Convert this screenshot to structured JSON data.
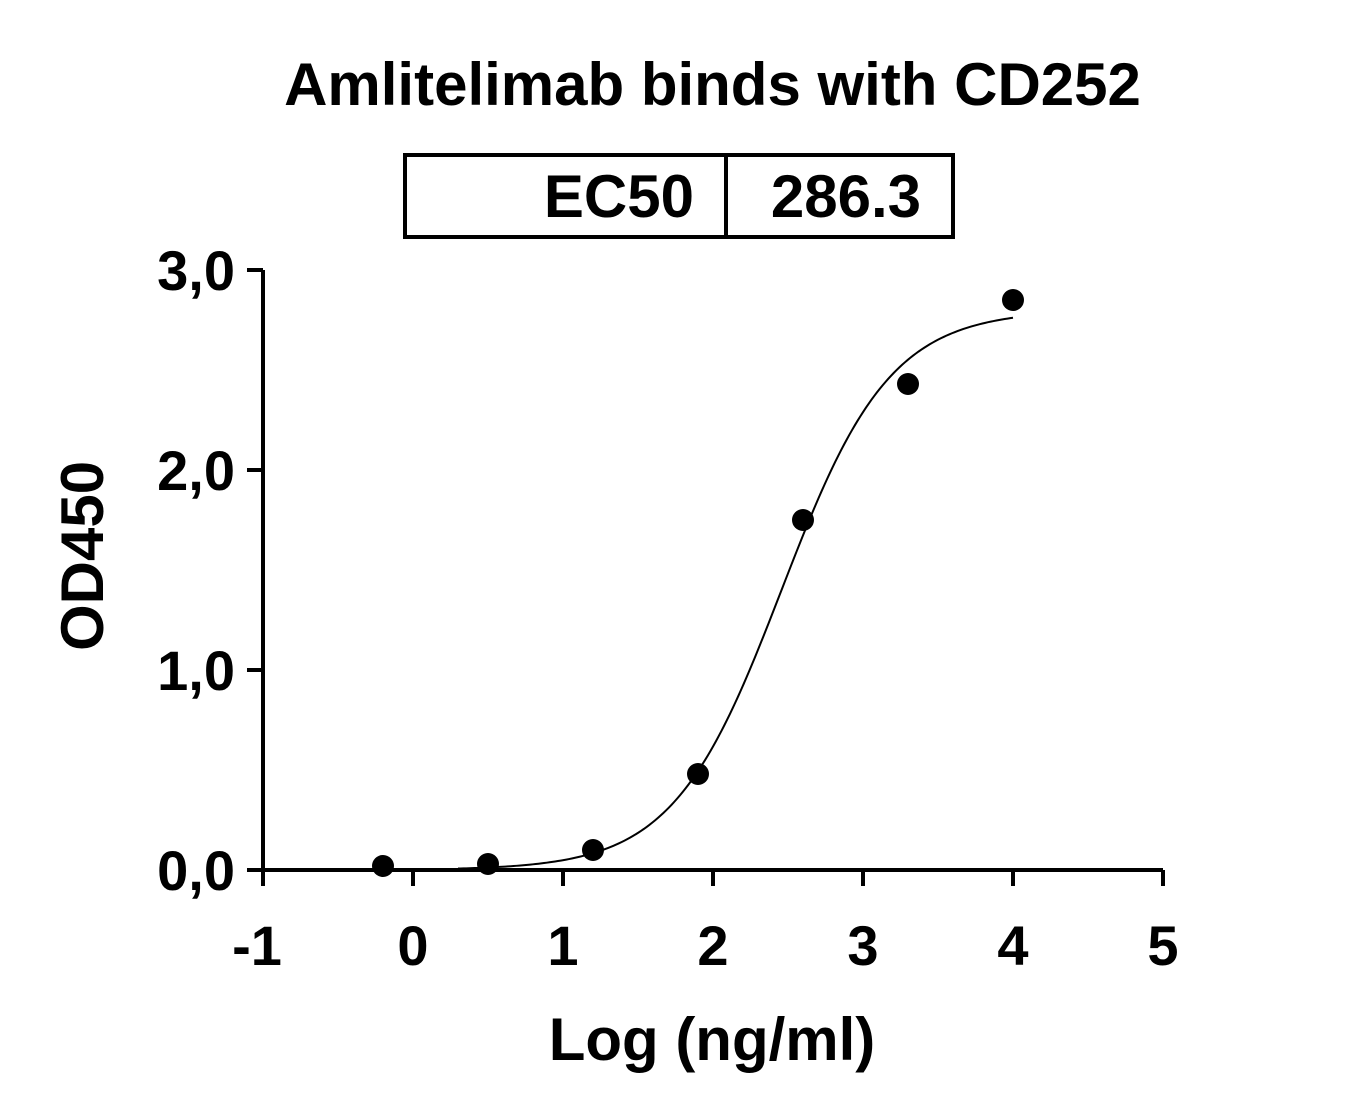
{
  "chart_data": {
    "type": "scatter",
    "title": "Amlitelimab binds with CD252",
    "xlabel": "Log (ng/ml)",
    "ylabel": "OD450",
    "xlim": [
      -1,
      5
    ],
    "ylim": [
      0,
      3
    ],
    "x_ticks": [
      "-1",
      "0",
      "1",
      "2",
      "3",
      "4",
      "5"
    ],
    "y_ticks": [
      "0,0",
      "1,0",
      "2,0",
      "3,0"
    ],
    "ec50_table": {
      "label": "EC50",
      "value": "286.3"
    },
    "series": [
      {
        "x": [
          -0.2,
          0.5,
          1.2,
          1.9,
          2.6,
          3.3,
          4.0
        ],
        "y": [
          0.02,
          0.03,
          0.1,
          0.48,
          1.75,
          2.43,
          2.85
        ]
      }
    ],
    "fit_curve": {
      "model": "4PL",
      "bottom": 0.0,
      "top": 2.8,
      "log_ec50": 2.457,
      "hill": 1.2,
      "x_range": [
        0.3,
        4.0
      ]
    },
    "grid": false,
    "colors": {
      "points": "#000000",
      "curve": "#000000",
      "axes": "#000000"
    }
  }
}
